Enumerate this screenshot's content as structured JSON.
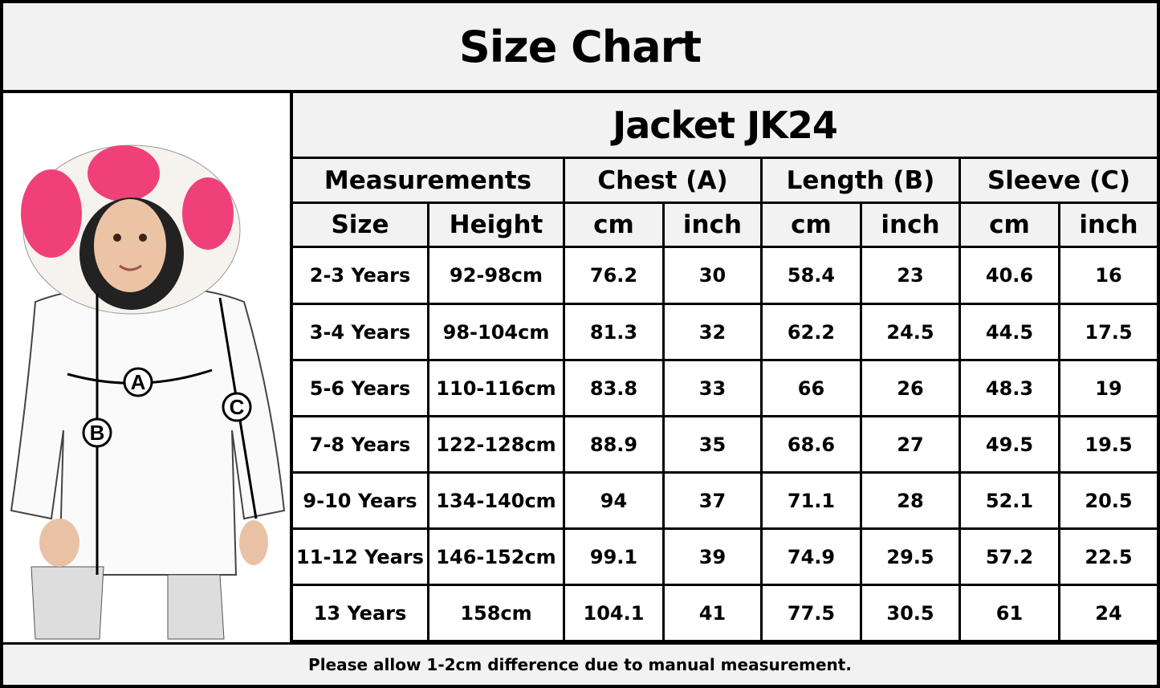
{
  "title": "Size Chart",
  "product": "Jacket JK24",
  "image": {
    "labels": [
      "A",
      "B",
      "C"
    ],
    "accent": "#f0407a"
  },
  "groups": [
    {
      "label": "Measurements"
    },
    {
      "label": "Chest (A)"
    },
    {
      "label": "Length (B)"
    },
    {
      "label": "Sleeve (C)"
    }
  ],
  "subheaders": [
    "Size",
    "Height",
    "cm",
    "inch",
    "cm",
    "inch",
    "cm",
    "inch"
  ],
  "rows": [
    [
      "2-3 Years",
      "92-98cm",
      "76.2",
      "30",
      "58.4",
      "23",
      "40.6",
      "16"
    ],
    [
      "3-4 Years",
      "98-104cm",
      "81.3",
      "32",
      "62.2",
      "24.5",
      "44.5",
      "17.5"
    ],
    [
      "5-6 Years",
      "110-116cm",
      "83.8",
      "33",
      "66",
      "26",
      "48.3",
      "19"
    ],
    [
      "7-8 Years",
      "122-128cm",
      "88.9",
      "35",
      "68.6",
      "27",
      "49.5",
      "19.5"
    ],
    [
      "9-10 Years",
      "134-140cm",
      "94",
      "37",
      "71.1",
      "28",
      "52.1",
      "20.5"
    ],
    [
      "11-12 Years",
      "146-152cm",
      "99.1",
      "39",
      "74.9",
      "29.5",
      "57.2",
      "22.5"
    ],
    [
      "13 Years",
      "158cm",
      "104.1",
      "41",
      "77.5",
      "30.5",
      "61",
      "24"
    ]
  ],
  "footer": "Please allow 1-2cm difference due to manual measurement."
}
